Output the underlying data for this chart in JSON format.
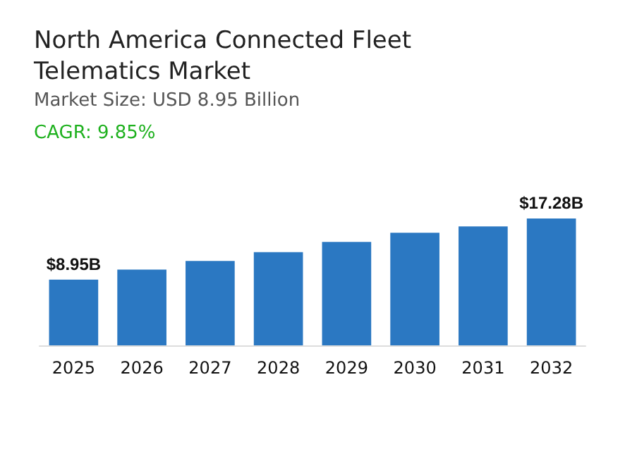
{
  "chart_data": {
    "type": "bar",
    "title": "North America Connected Fleet\nTelematics Market",
    "subtitle": "Market Size: USD 8.95 Billion",
    "annotations": [
      "CAGR: 9.85%"
    ],
    "categories": [
      "2025",
      "2026",
      "2027",
      "2028",
      "2029",
      "2030",
      "2031",
      "2032"
    ],
    "values": [
      8.95,
      10.31,
      11.5,
      12.69,
      14.09,
      15.34,
      16.2,
      17.28
    ],
    "value_labels": [
      "$8.95B",
      null,
      null,
      null,
      null,
      null,
      null,
      "$17.28B"
    ],
    "color": "#2b78c2"
  }
}
